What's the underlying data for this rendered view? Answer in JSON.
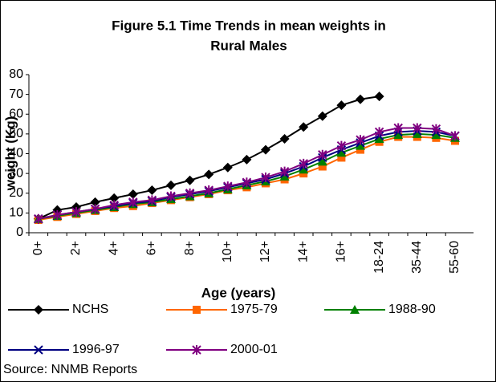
{
  "chart_data": {
    "type": "line",
    "title": [
      "Figure 5.1 Time Trends in mean weights in",
      "Rural Males"
    ],
    "x_label": "Age (years)",
    "y_label": "weight (Kg)",
    "note": "Source: NNMB Reports",
    "categories": [
      "0+",
      null,
      "2+",
      null,
      "4+",
      null,
      "6+",
      null,
      "8+",
      null,
      "10+",
      null,
      "12+",
      null,
      "14+",
      null,
      "16+",
      null,
      "18-24",
      null,
      "35-44",
      null,
      "55-60"
    ],
    "ylim": [
      0,
      80
    ],
    "yticks": [
      0,
      10,
      20,
      30,
      40,
      50,
      60,
      70,
      80
    ],
    "grid": false,
    "series": [
      {
        "name": "NCHS",
        "color": "#000000",
        "marker": "diamond",
        "values": [
          7,
          11.5,
          13,
          15.5,
          17.5,
          19.5,
          21.5,
          24,
          26.5,
          29.5,
          33,
          37,
          42,
          47.5,
          53.5,
          59,
          64.5,
          67.5,
          69,
          null,
          null,
          null,
          null
        ]
      },
      {
        "name": "1975-79",
        "color": "#ff6600",
        "marker": "square",
        "values": [
          6.5,
          8,
          9.5,
          11,
          12.5,
          13.5,
          15,
          16.5,
          18,
          19.5,
          21.5,
          23,
          25,
          27,
          30,
          33.5,
          38,
          42,
          46,
          48.5,
          48.5,
          48,
          46.5
        ]
      },
      {
        "name": "1988-90",
        "color": "#008000",
        "marker": "triangle",
        "values": [
          7,
          8.5,
          10,
          11.5,
          13,
          14.5,
          15.5,
          17,
          18.5,
          20,
          22,
          24,
          26,
          28.5,
          32,
          36,
          40.5,
          44,
          47.5,
          49.5,
          50,
          49.5,
          48
        ]
      },
      {
        "name": "1996-97",
        "color": "#000080",
        "marker": "x",
        "values": [
          7,
          9,
          10.5,
          12,
          13.5,
          15,
          16,
          18,
          19.5,
          21,
          23,
          25,
          27,
          30,
          33.5,
          38,
          42,
          45.5,
          49,
          51,
          51.5,
          51,
          49
        ]
      },
      {
        "name": "2000-01",
        "color": "#800080",
        "marker": "star",
        "values": [
          7,
          9,
          10.5,
          12,
          14,
          15.5,
          16.5,
          18.5,
          20,
          21.5,
          23.5,
          25.5,
          28,
          31,
          35,
          39.5,
          44,
          47,
          51,
          53,
          53,
          52.5,
          49
        ]
      }
    ]
  }
}
